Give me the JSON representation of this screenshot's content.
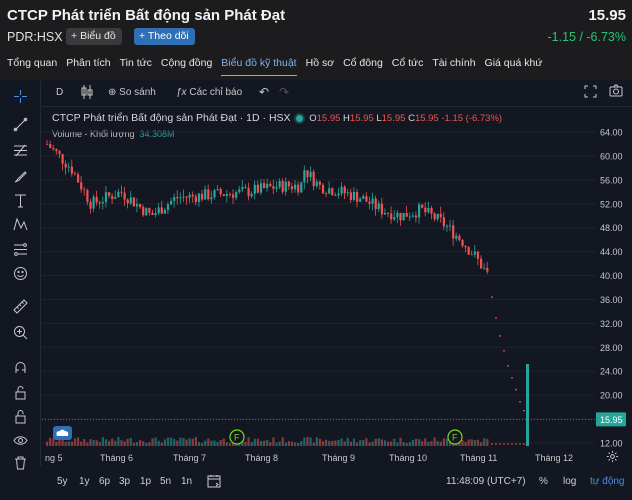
{
  "header": {
    "company_name": "CTCP Phát triển Bất động sản Phát Đạt",
    "ticker_exchange": "PDR:HSX",
    "chart_button": "Biểu đồ",
    "follow_button": "Theo dõi",
    "price": "15.95",
    "change": "-1.15 / -6.73%"
  },
  "tabs": [
    "Tổng quan",
    "Phân tích",
    "Tin tức",
    "Cộng đồng",
    "Biểu đồ kỹ thuật",
    "Hồ sơ",
    "Cổ đông",
    "Cổ tức",
    "Tài chính",
    "Giá quá khứ"
  ],
  "toolbar": {
    "interval": "D",
    "compare": "So sánh",
    "indicators": "Các chỉ báo"
  },
  "legend": {
    "symbol_desc": "CTCP Phát triển Bất động sản Phát Đạt",
    "interval": "1D",
    "exchange": "HSX",
    "o_label": "O",
    "o_value": "15.95",
    "h_label": "H",
    "h_value": "15.95",
    "l_label": "L",
    "l_value": "15.95",
    "c_label": "C",
    "c_value": "15.95",
    "chg": "-1.15 (-6.73%)",
    "volume_label": "Volume - Khối lượng",
    "volume_value": "34.308M"
  },
  "price_axis": {
    "ticks": [
      "64.00",
      "60.00",
      "56.00",
      "52.00",
      "48.00",
      "44.00",
      "40.00",
      "36.00",
      "32.00",
      "28.00",
      "24.00",
      "20.00",
      "16.00",
      "12.00"
    ],
    "last_price": "15.95"
  },
  "time_axis": [
    "ng 5",
    "Tháng 6",
    "Tháng 7",
    "Tháng 8",
    "Tháng 9",
    "Tháng 10",
    "Tháng 11",
    "Tháng 12"
  ],
  "markers": [
    "F",
    "F"
  ],
  "bottom": {
    "ranges": [
      "5y",
      "1y",
      "6p",
      "3p",
      "1p",
      "5n",
      "1n"
    ],
    "clock": "11:48:09 (UTC+7)",
    "percent": "%",
    "log": "log",
    "auto": "tự động"
  },
  "colors": {
    "up": "#26a69a",
    "down": "#ef5350",
    "accent": "#2962ff",
    "positive_text": "#27c57a"
  },
  "chart_data": {
    "type": "candlestick",
    "price_ylim": [
      12,
      64
    ],
    "x_labels": [
      "ng 5",
      "Tháng 6",
      "Tháng 7",
      "Tháng 8",
      "Tháng 9",
      "Tháng 10",
      "Tháng 11",
      "Tháng 12"
    ],
    "close_path": [
      {
        "month": "Tháng 5 (end)",
        "close": 62
      },
      {
        "month": "Tháng 6",
        "close": 53
      },
      {
        "month": "Tháng 7",
        "close": 54
      },
      {
        "month": "Tháng 8",
        "close": 55
      },
      {
        "month": "Tháng 8 (peak)",
        "close": 58
      },
      {
        "month": "Tháng 9",
        "close": 53
      },
      {
        "month": "Tháng 10",
        "close": 50
      },
      {
        "month": "Tháng 11",
        "close": 40
      },
      {
        "month": "Tháng 11 (last)",
        "close": 15.95
      }
    ],
    "last": {
      "open": 15.95,
      "high": 15.95,
      "low": 15.95,
      "close": 15.95
    },
    "volume_last": "34.308M"
  }
}
